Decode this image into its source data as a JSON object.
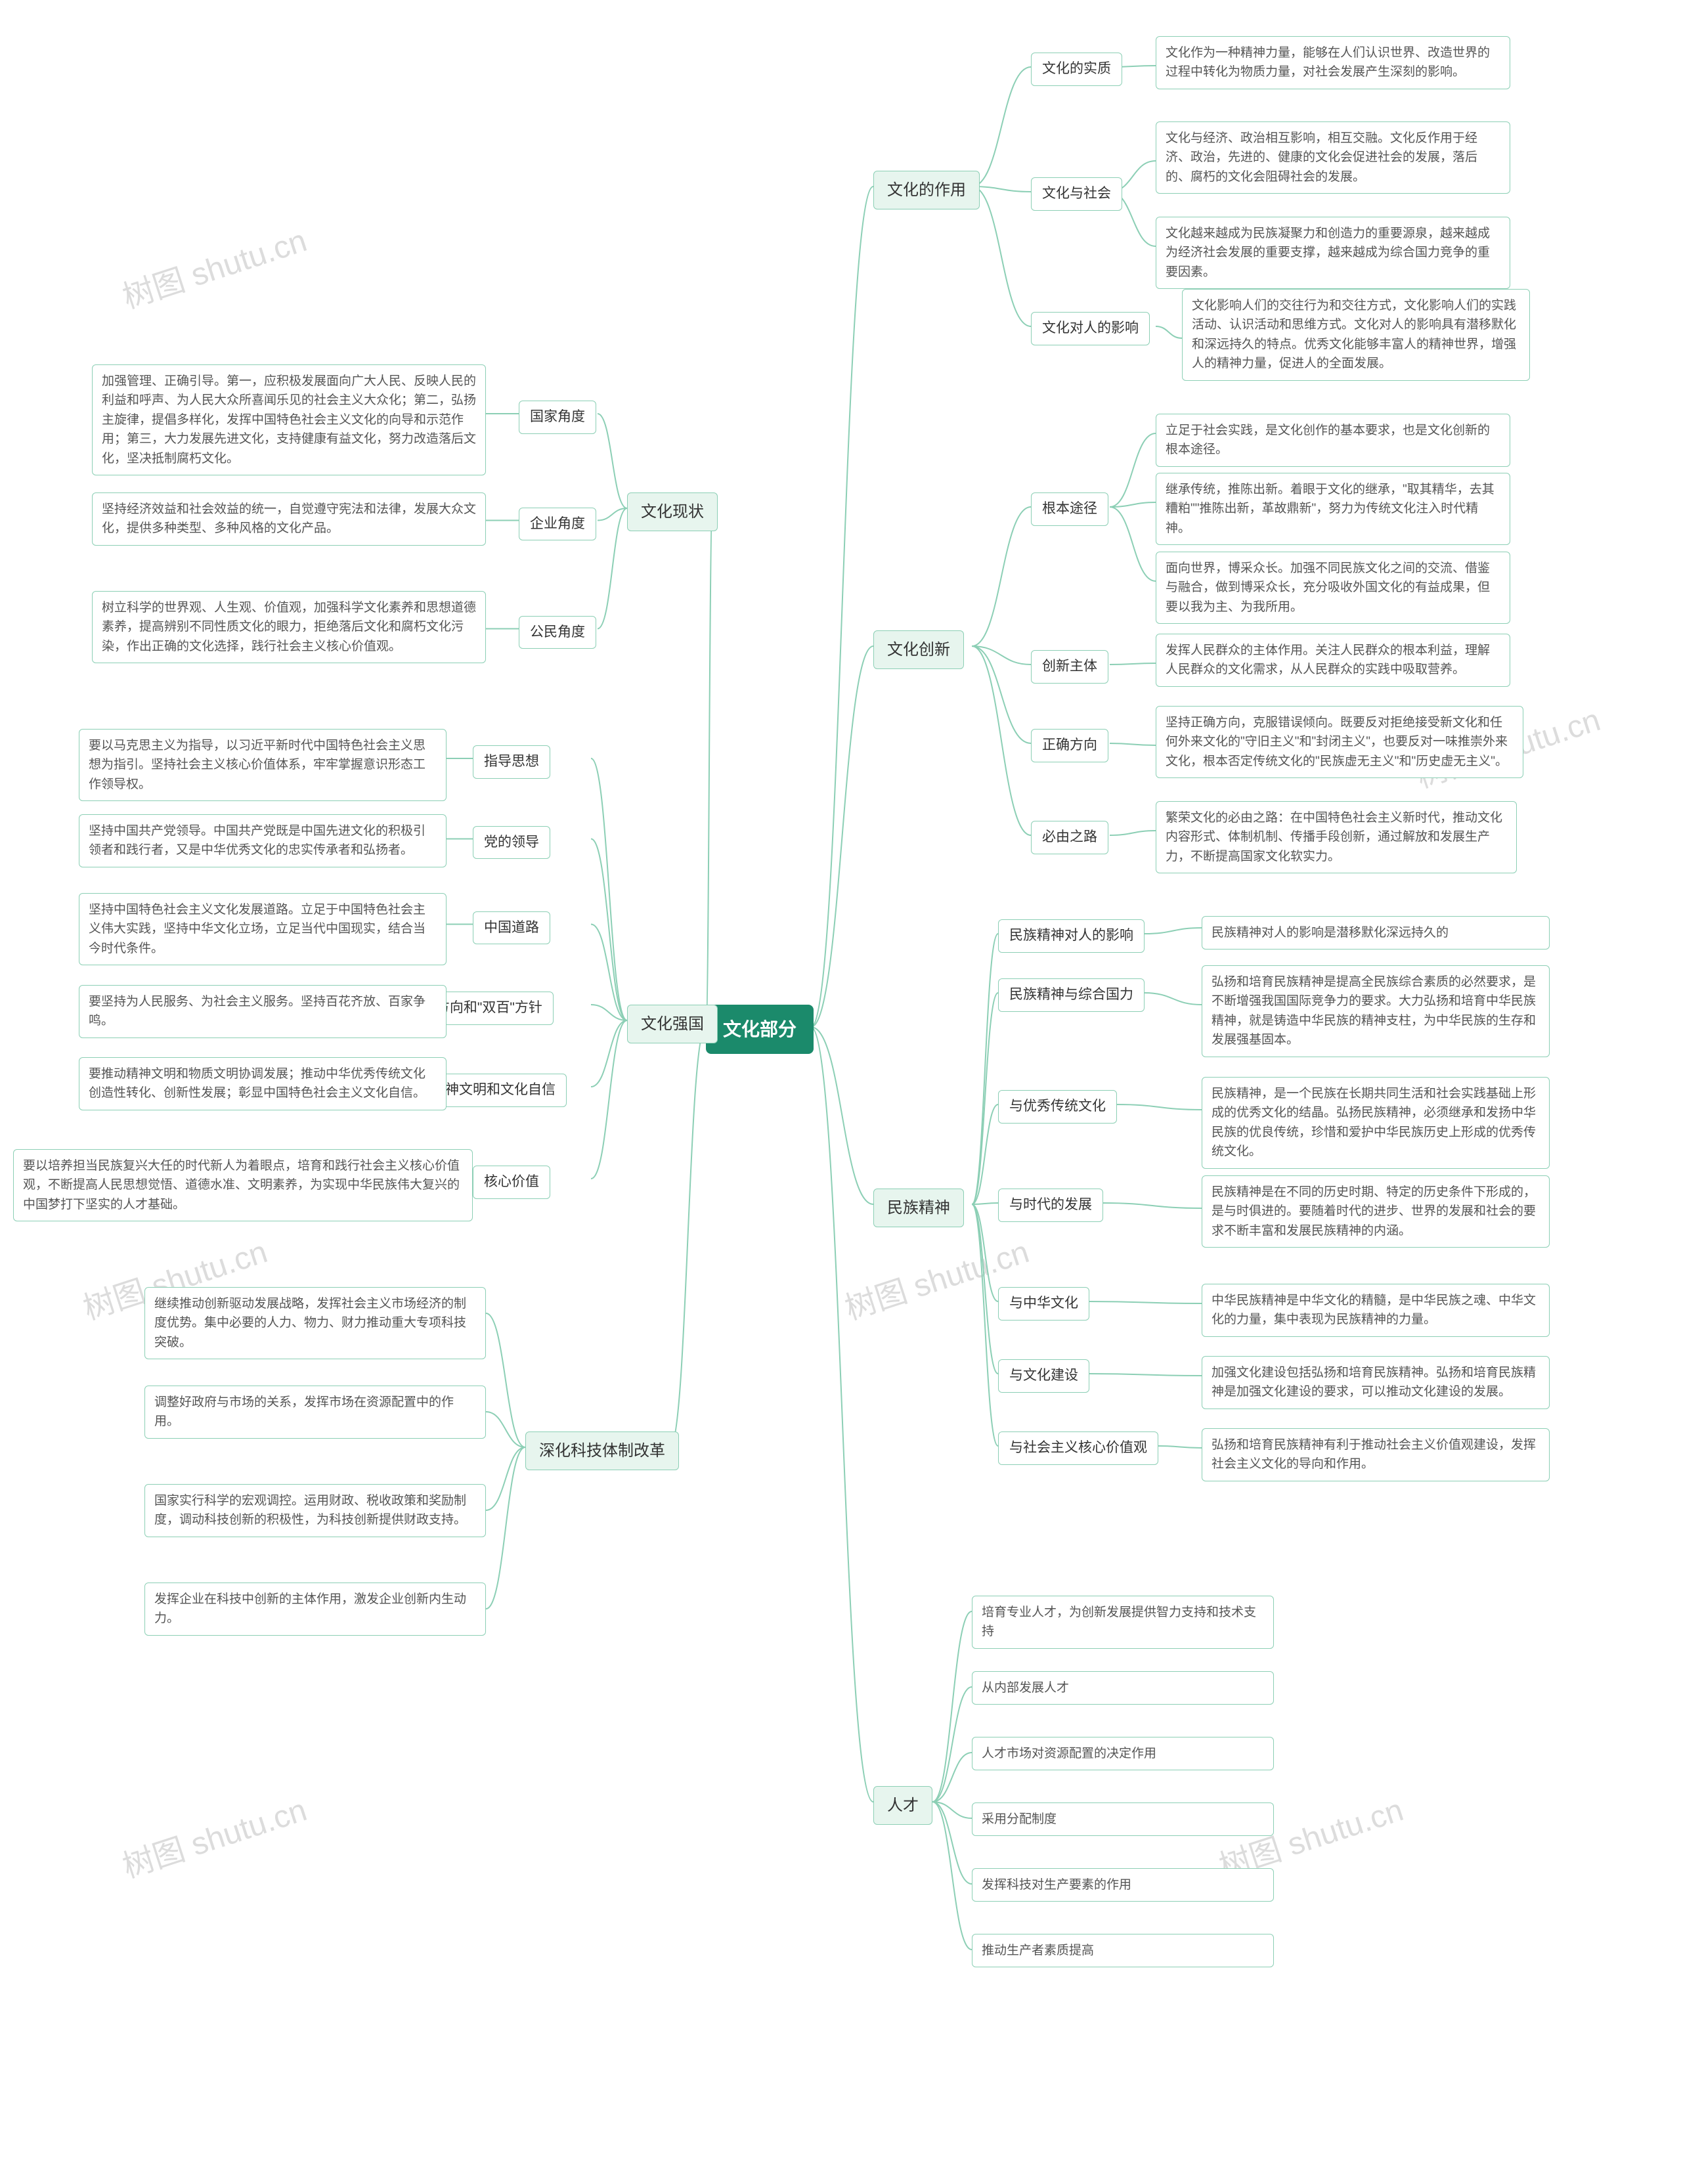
{
  "watermark": "树图 shutu.cn",
  "colors": {
    "root_bg": "#1b8a6b",
    "root_fg": "#ffffff",
    "branch_bg": "#e7f5ee",
    "node_border": "#8ccfb5",
    "line": "#8ccfb5",
    "leaf_text": "#555555",
    "wm": "#dcdcdc",
    "bg": "#ffffff"
  },
  "root": "文化部分",
  "branches": {
    "role": {
      "label": "文化的作用",
      "children": {
        "essence": {
          "label": "文化的实质",
          "leaf": "文化作为一种精神力量，能够在人们认识世界、改造世界的过程中转化为物质力量，对社会发展产生深刻的影响。"
        },
        "society": {
          "label": "文化与社会",
          "leaf1": "文化与经济、政治相互影响，相互交融。文化反作用于经济、政治，先进的、健康的文化会促进社会的发展，落后的、腐朽的文化会阻碍社会的发展。",
          "leaf2": "文化越来越成为民族凝聚力和创造力的重要源泉，越来越成为经济社会发展的重要支撑，越来越成为综合国力竞争的重要因素。"
        },
        "people": {
          "label": "文化对人的影响",
          "leaf": "文化影响人们的交往行为和交往方式，文化影响人们的实践活动、认识活动和思维方式。文化对人的影响具有潜移默化和深远持久的特点。优秀文化能够丰富人的精神世界，增强人的精神力量，促进人的全面发展。"
        }
      }
    },
    "innovation": {
      "label": "文化创新",
      "children": {
        "path": {
          "label": "根本途径",
          "leaf1": "立足于社会实践，是文化创作的基本要求，也是文化创新的根本途径。",
          "leaf2": "继承传统，推陈出新。着眼于文化的继承，\"取其精华，去其糟粕\"\"推陈出新，革故鼎新\"，努力为传统文化注入时代精神。",
          "leaf3": "面向世界，博采众长。加强不同民族文化之间的交流、借鉴与融合，做到博采众长，充分吸收外国文化的有益成果，但要以我为主、为我所用。"
        },
        "subject": {
          "label": "创新主体",
          "leaf": "发挥人民群众的主体作用。关注人民群众的根本利益，理解人民群众的文化需求，从人民群众的实践中吸取营养。"
        },
        "direction": {
          "label": "正确方向",
          "leaf": "坚持正确方向，克服错误倾向。既要反对拒绝接受新文化和任何外来文化的\"守旧主义\"和\"封闭主义\"，也要反对一味推崇外来文化，根本否定传统文化的\"民族虚无主义\"和\"历史虚无主义\"。"
        },
        "must": {
          "label": "必由之路",
          "leaf": "繁荣文化的必由之路：在中国特色社会主义新时代，推动文化内容形式、体制机制、传播手段创新，通过解放和发展生产力，不断提高国家文化软实力。"
        }
      }
    },
    "spirit": {
      "label": "民族精神",
      "children": {
        "impact": {
          "label": "民族精神对人的影响",
          "leaf": "民族精神对人的影响是潜移默化深远持久的"
        },
        "power": {
          "label": "民族精神与综合国力",
          "leaf": "弘扬和培育民族精神是提高全民族综合素质的必然要求，是不断增强我国国际竞争力的要求。大力弘扬和培育中华民族精神，就是铸造中华民族的精神支柱，为中华民族的生存和发展强基固本。"
        },
        "trad": {
          "label": "与优秀传统文化",
          "leaf": "民族精神，是一个民族在长期共同生活和社会实践基础上形成的优秀文化的结晶。弘扬民族精神，必须继承和发扬中华民族的优良传统，珍惜和爱护中华民族历史上形成的优秀传统文化。"
        },
        "era": {
          "label": "与时代的发展",
          "leaf": "民族精神是在不同的历史时期、特定的历史条件下形成的，是与时俱进的。要随着时代的进步、世界的发展和社会的要求不断丰富和发展民族精神的内涵。"
        },
        "chinese": {
          "label": "与中华文化",
          "leaf": "中华民族精神是中华文化的精髓，是中华民族之魂、中华文化的力量，集中表现为民族精神的力量。"
        },
        "build": {
          "label": "与文化建设",
          "leaf": "加强文化建设包括弘扬和培育民族精神。弘扬和培育民族精神是加强文化建设的要求，可以推动文化建设的发展。"
        },
        "values": {
          "label": "与社会主义核心价值观",
          "leaf": "弘扬和培育民族精神有利于推动社会主义价值观建设，发挥社会主义文化的导向和作用。"
        }
      }
    },
    "talent": {
      "label": "人才",
      "items": [
        "培育专业人才，为创新发展提供智力支持和技术支持",
        "从内部发展人才",
        "人才市场对资源配置的决定作用",
        "采用分配制度",
        "发挥科技对生产要素的作用",
        "推动生产者素质提高"
      ]
    },
    "status": {
      "label": "文化现状",
      "children": {
        "nation": {
          "label": "国家角度",
          "leaf": "加强管理、正确引导。第一，应积极发展面向广大人民、反映人民的利益和呼声、为人民大众所喜闻乐见的社会主义大众化；第二，弘扬主旋律，提倡多样化，发挥中国特色社会主义文化的向导和示范作用；第三，大力发展先进文化，支持健康有益文化，努力改造落后文化，坚决抵制腐朽文化。"
        },
        "enterprise": {
          "label": "企业角度",
          "leaf": "坚持经济效益和社会效益的统一，自觉遵守宪法和法律，发展大众文化，提供多种类型、多种风格的文化产品。"
        },
        "citizen": {
          "label": "公民角度",
          "leaf": "树立科学的世界观、人生观、价值观，加强科学文化素养和思想道德素养，提高辨别不同性质文化的眼力，拒绝落后文化和腐朽文化污染，作出正确的文化选择，践行社会主义核心价值观。"
        }
      }
    },
    "strong": {
      "label": "文化强国",
      "children": {
        "guide": {
          "label": "指导思想",
          "leaf": "要以马克思主义为指导，以习近平新时代中国特色社会主义思想为指引。坚持社会主义核心价值体系，牢牢掌握意识形态工作领导权。"
        },
        "party": {
          "label": "党的领导",
          "leaf": "坚持中国共产党领导。中国共产党既是中国先进文化的积极引领者和践行者，又是中华优秀文化的忠实传承者和弘扬者。"
        },
        "road": {
          "label": "中国道路",
          "leaf": "坚持中国特色社会主义文化发展道路。立足于中国特色社会主义伟大实践，坚持中华文化立场，立足当代中国现实，结合当今时代条件。"
        },
        "twotwo": {
          "label": "\"双为\"方向和\"双百\"方针",
          "leaf": "要坚持为人民服务、为社会主义服务。坚持百花齐放、百家争鸣。"
        },
        "spirit": {
          "label": "精神文明和文化自信",
          "leaf": "要推动精神文明和物质文明协调发展；推动中华优秀传统文化创造性转化、创新性发展；彰显中国特色社会主义文化自信。"
        },
        "core": {
          "label": "核心价值",
          "leaf": "要以培养担当民族复兴大任的时代新人为着眼点，培育和践行社会主义核心价值观，不断提高人民思想觉悟、道德水准、文明素养，为实现中华民族伟大复兴的中国梦打下坚实的人才基础。"
        }
      }
    },
    "reform": {
      "label": "深化科技体制改革",
      "items": [
        "继续推动创新驱动发展战略，发挥社会主义市场经济的制度优势。集中必要的人力、物力、财力推动重大专项科技突破。",
        "调整好政府与市场的关系，发挥市场在资源配置中的作用。",
        "国家实行科学的宏观调控。运用财政、税收政策和奖励制度，调动科技创新的积极性，为科技创新提供财政支持。",
        "发挥企业在科技中创新的主体作用，激发企业创新内生动力。"
      ]
    }
  }
}
